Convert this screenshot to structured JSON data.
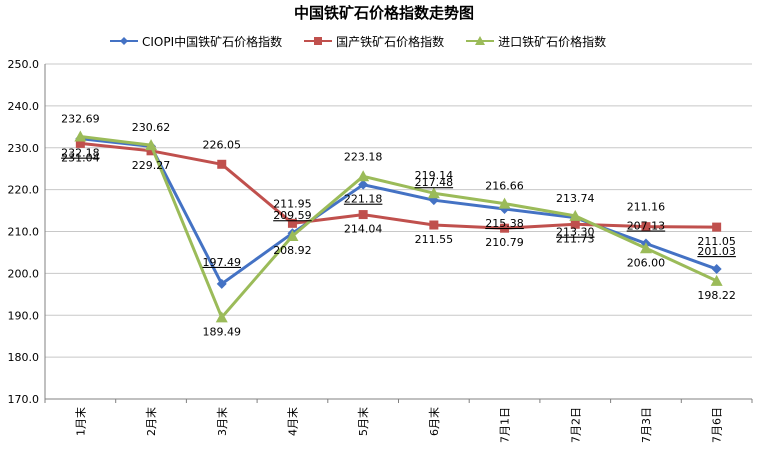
{
  "title": "中国铁矿石价格指数走势图",
  "colors": {
    "ciopi": "#4472C4",
    "domestic": "#C0504D",
    "imported": "#9BBB59",
    "grid": "#c8c8c8",
    "axis": "#808080"
  },
  "chart_data": {
    "type": "line",
    "title": "中国铁矿石价格指数走势图",
    "categories": [
      "1月末",
      "2月末",
      "3月末",
      "4月末",
      "5月末",
      "6月末",
      "7月1日",
      "7月2日",
      "7月3日",
      "7月6日"
    ],
    "ylim": [
      170,
      250
    ],
    "yticks": [
      "170.0",
      "180.0",
      "190.0",
      "200.0",
      "210.0",
      "220.0",
      "230.0",
      "240.0",
      "250.0"
    ],
    "grid": true,
    "legend_position": "top",
    "series": [
      {
        "key": "ciopi",
        "name": "CIOPI中国铁矿石价格指数",
        "marker": "diamond",
        "values": [
          232.18,
          230.32,
          197.49,
          209.59,
          221.18,
          217.48,
          215.38,
          213.3,
          207.13,
          201.03
        ],
        "labels": [
          "232.18",
          "",
          "197.49",
          "209.59",
          "221.18",
          "217.48",
          "215.38",
          "213.30",
          "207.13",
          "201.03"
        ]
      },
      {
        "key": "domestic",
        "name": "国产铁矿石价格指数",
        "marker": "square",
        "values": [
          231.04,
          229.27,
          226.05,
          211.95,
          214.04,
          211.55,
          210.79,
          211.73,
          211.16,
          211.05
        ],
        "labels": [
          "231.04",
          "229.27",
          "226.05",
          "211.95",
          "214.04",
          "211.55",
          "210.79",
          "211.73",
          "211.16",
          "211.05"
        ]
      },
      {
        "key": "imported",
        "name": "进口铁矿石价格指数",
        "marker": "triangle",
        "values": [
          232.69,
          230.62,
          189.49,
          208.92,
          223.18,
          219.14,
          216.66,
          213.74,
          206.0,
          198.22
        ],
        "labels": [
          "232.69",
          "230.62",
          "189.49",
          "208.92",
          "223.18",
          "219.14",
          "216.66",
          "213.74",
          "206.00",
          "198.22"
        ]
      }
    ]
  }
}
